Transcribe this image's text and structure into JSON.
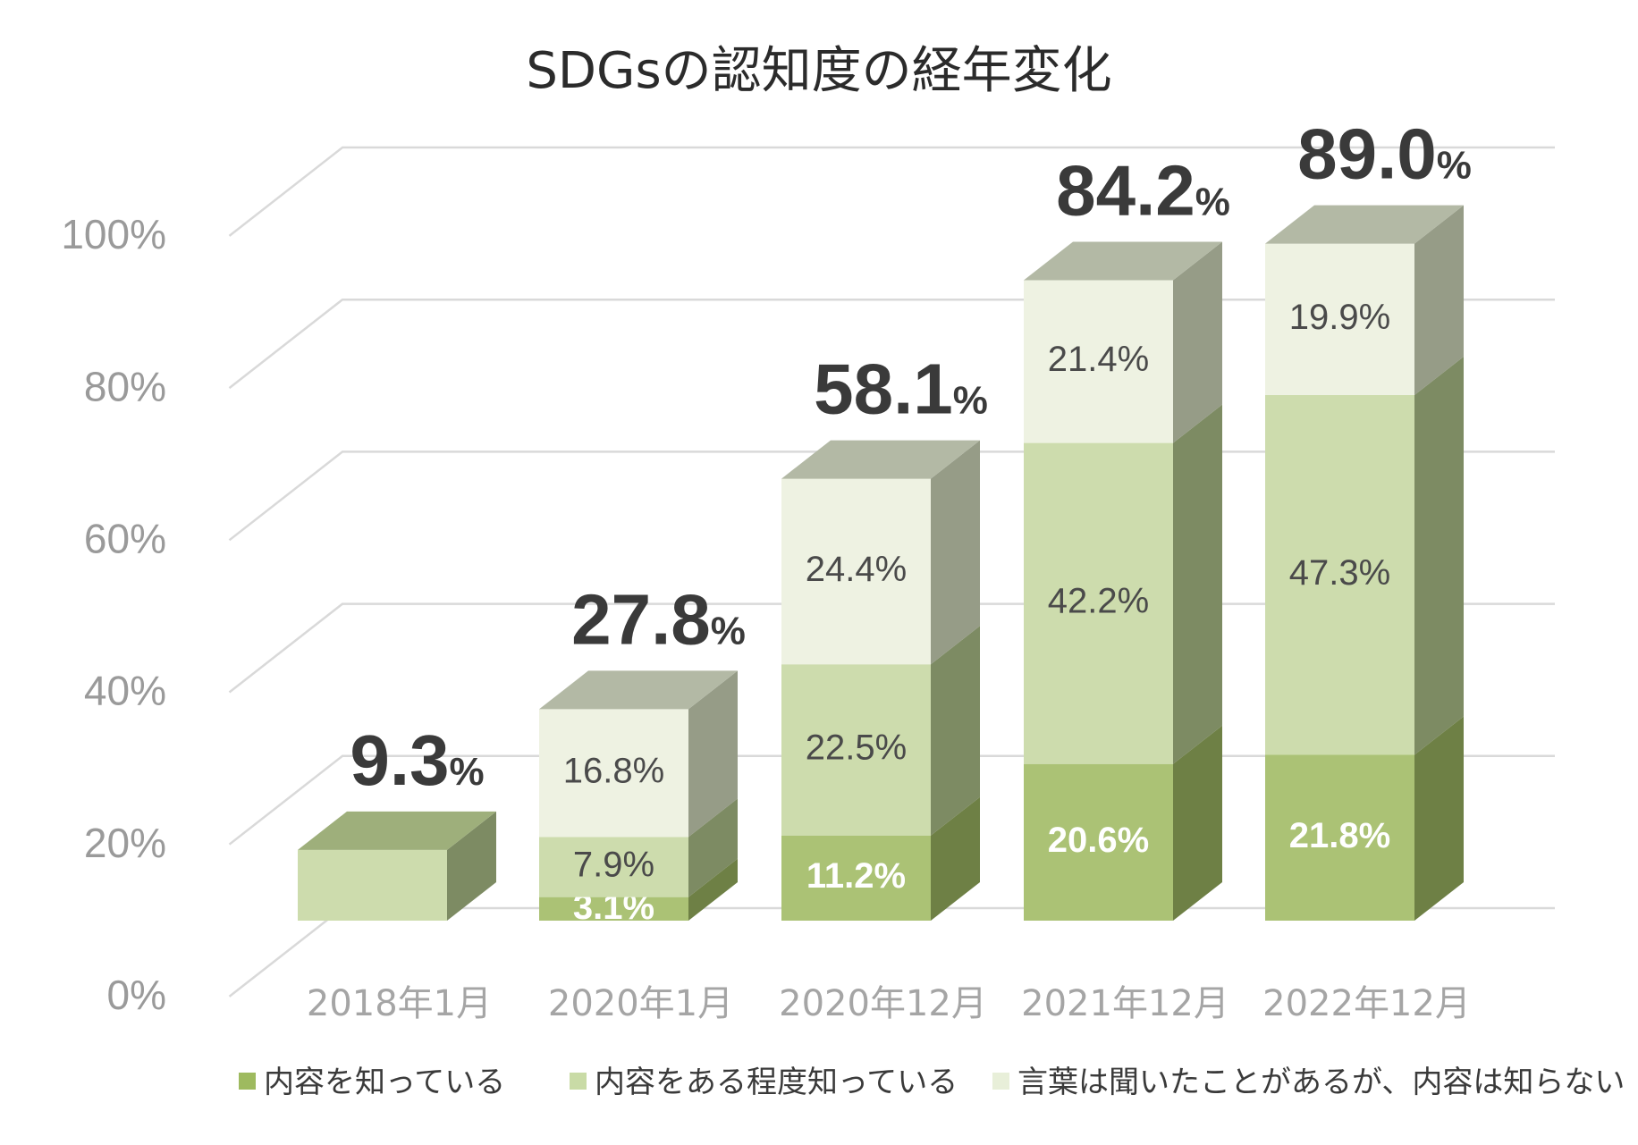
{
  "colors": {
    "s1_front": "#abc275",
    "s1_side": "#6e8045",
    "s1_top": "#8fa65f",
    "s2_front": "#cddcad",
    "s2_side": "#7d8b63",
    "s2_top": "#9eaf7b",
    "s3_front": "#eef2e2",
    "s3_side": "#969c87",
    "s3_top": "#b3b9a5",
    "grid": "#d9d9d9",
    "legend_s1": "#9eba5f",
    "legend_s2": "#c9dba6",
    "legend_s3": "#e8efd9"
  },
  "chart_data": {
    "type": "bar",
    "stacked": true,
    "three_d": true,
    "title": "SDGsの認知度の経年変化",
    "categories": [
      "2018年1月",
      "2020年1月",
      "2020年12月",
      "2021年12月",
      "2022年12月"
    ],
    "series": [
      {
        "name": "内容を知っている",
        "values": [
          null,
          3.1,
          11.2,
          20.6,
          21.8
        ],
        "labels": [
          "",
          "3.1%",
          "11.2%",
          "20.6%",
          "21.8%"
        ]
      },
      {
        "name": "内容をある程度知っている",
        "values": [
          9.3,
          7.9,
          22.5,
          42.2,
          47.3
        ],
        "labels": [
          "",
          "7.9%",
          "22.5%",
          "42.2%",
          "47.3%"
        ]
      },
      {
        "name": "言葉は聞いたことがあるが、内容は知らない",
        "values": [
          null,
          16.8,
          24.4,
          21.4,
          19.9
        ],
        "labels": [
          "",
          "16.8%",
          "24.4%",
          "21.4%",
          "19.9%"
        ]
      }
    ],
    "totals": {
      "numbers": [
        "9.3",
        "27.8",
        "58.1",
        "84.2",
        "89.0"
      ],
      "suffix": "%"
    },
    "yticks": [
      "0%",
      "20%",
      "40%",
      "60%",
      "80%",
      "100%"
    ],
    "ylim": [
      0,
      100
    ],
    "grid": true,
    "legend_position": "bottom"
  }
}
